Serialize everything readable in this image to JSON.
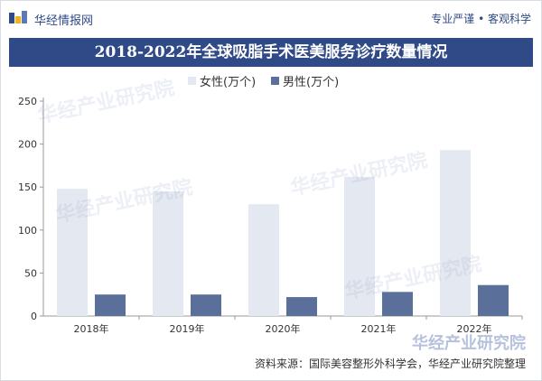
{
  "header": {
    "brand": "华经情报网",
    "tagline": "专业严谨 • 客观科学"
  },
  "chart_data": {
    "type": "bar",
    "title": "2018-2022年全球吸脂手术医美服务诊疗数量情况",
    "categories": [
      "2018年",
      "2019年",
      "2020年",
      "2021年",
      "2022年"
    ],
    "series": [
      {
        "name": "女性(万个)",
        "color": "#e4e8f0",
        "values": [
          148,
          145,
          130,
          162,
          193
        ]
      },
      {
        "name": "男性(万个)",
        "color": "#5b6f9b",
        "values": [
          25,
          25,
          22,
          28,
          36
        ]
      }
    ],
    "ylim": [
      0,
      250
    ],
    "yticks": [
      0,
      50,
      100,
      150,
      200,
      250
    ],
    "xlabel": "",
    "ylabel": "",
    "legend_position": "top-center",
    "grid": false
  },
  "footer": {
    "source": "资料来源：国际美容整形外科学会，华经产业研究院整理",
    "watermark": "华经产业研究院"
  }
}
